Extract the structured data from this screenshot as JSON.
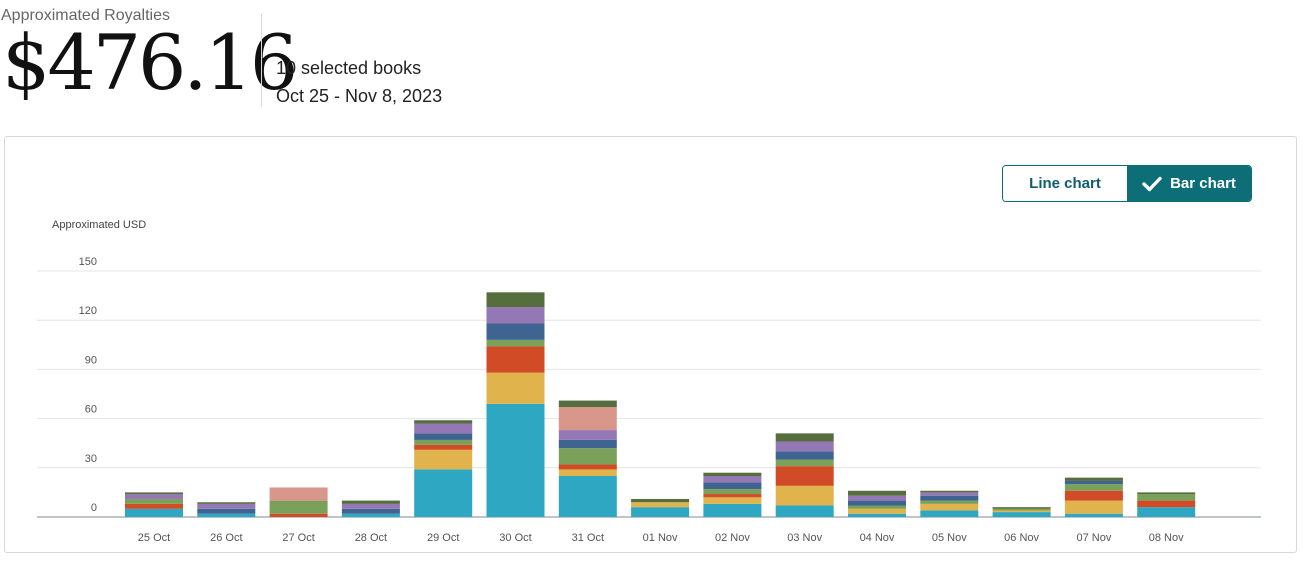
{
  "header": {
    "title": "Approximated Royalties",
    "amount": "$476.16",
    "books": "10 selected books",
    "date_range": "Oct 25 - Nov 8, 2023"
  },
  "toggle": {
    "line_label": "Line chart",
    "bar_label": "Bar chart",
    "selected": "bar"
  },
  "chart_data": {
    "type": "bar",
    "stacked": true,
    "ylabel": "Approximated USD",
    "ylim": [
      0,
      150
    ],
    "yticks": [
      0,
      30,
      60,
      90,
      120,
      150
    ],
    "grid": true,
    "categories": [
      "25 Oct",
      "26 Oct",
      "27 Oct",
      "28 Oct",
      "29 Oct",
      "30 Oct",
      "31 Oct",
      "01 Nov",
      "02 Nov",
      "03 Nov",
      "04 Nov",
      "05 Nov",
      "06 Nov",
      "07 Nov",
      "08 Nov"
    ],
    "series": [
      {
        "color": "#2ea7c2",
        "values": [
          5,
          2,
          0,
          2,
          29,
          69,
          25,
          6,
          8,
          7,
          2,
          4,
          3,
          2,
          6
        ]
      },
      {
        "color": "#e0b34c",
        "values": [
          0,
          0,
          0,
          0,
          12,
          19,
          4,
          3,
          4,
          12,
          3,
          4,
          1,
          8,
          0
        ]
      },
      {
        "color": "#d24b27",
        "values": [
          3,
          0,
          2,
          0,
          3,
          16,
          3,
          0,
          2,
          12,
          0,
          0,
          0,
          6,
          4
        ]
      },
      {
        "color": "#7aa05a",
        "values": [
          3,
          0,
          8,
          0,
          3,
          4,
          10,
          0,
          3,
          4,
          2,
          2,
          1,
          4,
          4
        ]
      },
      {
        "color": "#3f6491",
        "values": [
          0,
          3,
          0,
          3,
          4,
          10,
          5,
          0,
          4,
          5,
          3,
          3,
          0,
          2,
          0
        ]
      },
      {
        "color": "#9477b5",
        "values": [
          3,
          3,
          0,
          3,
          6,
          10,
          6,
          0,
          4,
          6,
          3,
          2,
          0,
          0,
          0
        ]
      },
      {
        "color": "#d8978a",
        "values": [
          0,
          0,
          8,
          0,
          0,
          0,
          14,
          0,
          0,
          0,
          0,
          0,
          0,
          0,
          0
        ]
      },
      {
        "color": "#566e3d",
        "values": [
          1,
          1,
          0,
          2,
          2,
          9,
          4,
          2,
          2,
          5,
          3,
          1,
          1,
          2,
          1
        ]
      }
    ]
  }
}
